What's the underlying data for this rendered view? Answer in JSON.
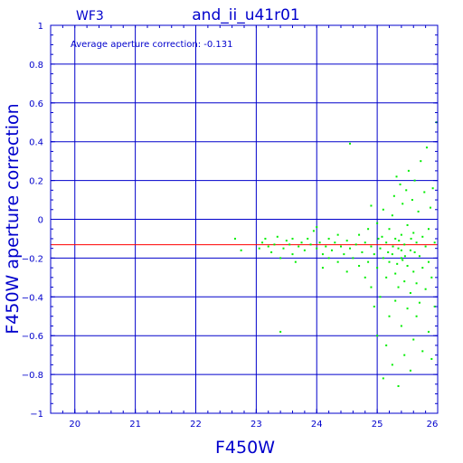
{
  "chart_data": {
    "type": "scatter",
    "title": "and_ii_u41r01",
    "chip_label": "WF3",
    "annotation": "Average aperture correction: -0.131",
    "xlabel": "F450W",
    "ylabel": "F450W aperture correction",
    "xlim": [
      19.6,
      26.0
    ],
    "ylim": [
      -1.0,
      1.0
    ],
    "x_ticks": [
      20,
      21,
      22,
      23,
      24,
      25,
      26
    ],
    "x_tick_labels": [
      "20",
      "21",
      "22",
      "23",
      "24",
      "25",
      "26"
    ],
    "y_ticks": [
      -1,
      -0.8,
      -0.6,
      -0.4,
      -0.2,
      0,
      0.2,
      0.4,
      0.6,
      0.8,
      1
    ],
    "y_tick_labels": [
      "−1",
      "−0.8",
      "−0.6",
      "−0.4",
      "−0.2",
      "0",
      "0.2",
      "0.4",
      "0.6",
      "0.8",
      "1"
    ],
    "grid": true,
    "reference_line": {
      "y": -0.131,
      "color": "#ff0000"
    },
    "colors": {
      "axes": "#0000cc",
      "points": "#00ee00",
      "reference": "#ff0000"
    },
    "points": [
      {
        "x": 22.65,
        "y": -0.1
      },
      {
        "x": 22.75,
        "y": -0.16
      },
      {
        "x": 23.05,
        "y": -0.15
      },
      {
        "x": 23.1,
        "y": -0.12
      },
      {
        "x": 23.15,
        "y": -0.1
      },
      {
        "x": 23.2,
        "y": -0.14
      },
      {
        "x": 23.25,
        "y": -0.17
      },
      {
        "x": 23.3,
        "y": -0.13
      },
      {
        "x": 23.35,
        "y": -0.09
      },
      {
        "x": 23.4,
        "y": -0.2
      },
      {
        "x": 23.4,
        "y": -0.58
      },
      {
        "x": 23.45,
        "y": -0.15
      },
      {
        "x": 23.5,
        "y": -0.11
      },
      {
        "x": 23.55,
        "y": -0.13
      },
      {
        "x": 23.6,
        "y": -0.18
      },
      {
        "x": 23.6,
        "y": -0.1
      },
      {
        "x": 23.65,
        "y": -0.22
      },
      {
        "x": 23.7,
        "y": -0.14
      },
      {
        "x": 23.75,
        "y": -0.12
      },
      {
        "x": 23.8,
        "y": -0.16
      },
      {
        "x": 23.85,
        "y": -0.1
      },
      {
        "x": 23.9,
        "y": -0.13
      },
      {
        "x": 23.95,
        "y": -0.06
      },
      {
        "x": 24.0,
        "y": -0.15
      },
      {
        "x": 24.0,
        "y": -0.04
      },
      {
        "x": 24.05,
        "y": -0.12
      },
      {
        "x": 24.1,
        "y": -0.18
      },
      {
        "x": 24.1,
        "y": -0.25
      },
      {
        "x": 24.15,
        "y": -0.14
      },
      {
        "x": 24.2,
        "y": -0.1
      },
      {
        "x": 24.2,
        "y": -0.2
      },
      {
        "x": 24.25,
        "y": -0.16
      },
      {
        "x": 24.3,
        "y": -0.12
      },
      {
        "x": 24.35,
        "y": -0.08
      },
      {
        "x": 24.35,
        "y": -0.22
      },
      {
        "x": 24.4,
        "y": -0.14
      },
      {
        "x": 24.45,
        "y": -0.18
      },
      {
        "x": 24.5,
        "y": -0.11
      },
      {
        "x": 24.5,
        "y": -0.27
      },
      {
        "x": 24.55,
        "y": 0.39
      },
      {
        "x": 24.55,
        "y": -0.15
      },
      {
        "x": 24.6,
        "y": -0.2
      },
      {
        "x": 24.65,
        "y": -0.13
      },
      {
        "x": 24.7,
        "y": -0.24
      },
      {
        "x": 24.7,
        "y": -0.08
      },
      {
        "x": 24.75,
        "y": -0.17
      },
      {
        "x": 24.8,
        "y": -0.12
      },
      {
        "x": 24.8,
        "y": -0.3
      },
      {
        "x": 24.85,
        "y": -0.05
      },
      {
        "x": 24.85,
        "y": -0.22
      },
      {
        "x": 24.9,
        "y": 0.07
      },
      {
        "x": 24.9,
        "y": -0.35
      },
      {
        "x": 24.9,
        "y": -0.14
      },
      {
        "x": 24.95,
        "y": -0.45
      },
      {
        "x": 24.95,
        "y": -0.18
      },
      {
        "x": 25.0,
        "y": -0.02
      },
      {
        "x": 25.0,
        "y": -0.25
      },
      {
        "x": 25.0,
        "y": -0.6
      },
      {
        "x": 25.02,
        "y": -0.1
      },
      {
        "x": 25.05,
        "y": -0.15
      },
      {
        "x": 25.05,
        "y": -0.4
      },
      {
        "x": 25.1,
        "y": -0.82
      },
      {
        "x": 25.1,
        "y": -0.2
      },
      {
        "x": 25.1,
        "y": 0.05
      },
      {
        "x": 25.15,
        "y": -0.3
      },
      {
        "x": 25.15,
        "y": -0.12
      },
      {
        "x": 25.15,
        "y": -0.65
      },
      {
        "x": 25.2,
        "y": -0.05
      },
      {
        "x": 25.2,
        "y": -0.22
      },
      {
        "x": 25.2,
        "y": -0.5
      },
      {
        "x": 25.25,
        "y": 0.02
      },
      {
        "x": 25.25,
        "y": -0.18
      },
      {
        "x": 25.25,
        "y": -0.75
      },
      {
        "x": 25.28,
        "y": 0.12
      },
      {
        "x": 25.3,
        "y": -0.1
      },
      {
        "x": 25.3,
        "y": -0.28
      },
      {
        "x": 25.3,
        "y": -0.42
      },
      {
        "x": 25.32,
        "y": 0.22
      },
      {
        "x": 25.35,
        "y": -0.15
      },
      {
        "x": 25.35,
        "y": -0.35
      },
      {
        "x": 25.35,
        "y": -0.86
      },
      {
        "x": 25.38,
        "y": 0.18
      },
      {
        "x": 25.4,
        "y": -0.08
      },
      {
        "x": 25.4,
        "y": -0.2
      },
      {
        "x": 25.4,
        "y": -0.55
      },
      {
        "x": 25.42,
        "y": 0.08
      },
      {
        "x": 25.45,
        "y": -0.13
      },
      {
        "x": 25.45,
        "y": -0.32
      },
      {
        "x": 25.45,
        "y": -0.7
      },
      {
        "x": 25.48,
        "y": 0.15
      },
      {
        "x": 25.5,
        "y": -0.03
      },
      {
        "x": 25.5,
        "y": -0.24
      },
      {
        "x": 25.5,
        "y": -0.46
      },
      {
        "x": 25.52,
        "y": 0.25
      },
      {
        "x": 25.55,
        "y": -0.16
      },
      {
        "x": 25.55,
        "y": -0.38
      },
      {
        "x": 25.55,
        "y": -0.78
      },
      {
        "x": 25.58,
        "y": 0.1
      },
      {
        "x": 25.6,
        "y": -0.07
      },
      {
        "x": 25.6,
        "y": -0.27
      },
      {
        "x": 25.6,
        "y": -0.62
      },
      {
        "x": 25.62,
        "y": 0.2
      },
      {
        "x": 25.65,
        "y": -0.12
      },
      {
        "x": 25.65,
        "y": -0.33
      },
      {
        "x": 25.65,
        "y": -0.5
      },
      {
        "x": 25.68,
        "y": 0.04
      },
      {
        "x": 25.7,
        "y": -0.19
      },
      {
        "x": 25.7,
        "y": -0.43
      },
      {
        "x": 25.72,
        "y": 0.3
      },
      {
        "x": 25.75,
        "y": -0.09
      },
      {
        "x": 25.75,
        "y": -0.25
      },
      {
        "x": 25.75,
        "y": -0.68
      },
      {
        "x": 25.78,
        "y": 0.14
      },
      {
        "x": 25.8,
        "y": -0.14
      },
      {
        "x": 25.8,
        "y": -0.36
      },
      {
        "x": 25.82,
        "y": 0.37
      },
      {
        "x": 25.85,
        "y": -0.05
      },
      {
        "x": 25.85,
        "y": -0.22
      },
      {
        "x": 25.85,
        "y": -0.58
      },
      {
        "x": 25.88,
        "y": 0.06
      },
      {
        "x": 25.9,
        "y": -0.3
      },
      {
        "x": 25.9,
        "y": -0.72
      },
      {
        "x": 25.92,
        "y": 0.16
      },
      {
        "x": 25.95,
        "y": -0.12
      },
      {
        "x": 25.95,
        "y": -0.45
      },
      {
        "x": 25.98,
        "y": 0.5
      },
      {
        "x": 25.4,
        "y": -0.16
      },
      {
        "x": 25.42,
        "y": -0.21
      },
      {
        "x": 25.36,
        "y": -0.11
      },
      {
        "x": 25.46,
        "y": -0.19
      },
      {
        "x": 25.33,
        "y": -0.23
      },
      {
        "x": 25.26,
        "y": -0.14
      },
      {
        "x": 25.56,
        "y": -0.1
      },
      {
        "x": 25.18,
        "y": -0.17
      },
      {
        "x": 25.08,
        "y": -0.09
      },
      {
        "x": 25.62,
        "y": -0.17
      }
    ]
  }
}
